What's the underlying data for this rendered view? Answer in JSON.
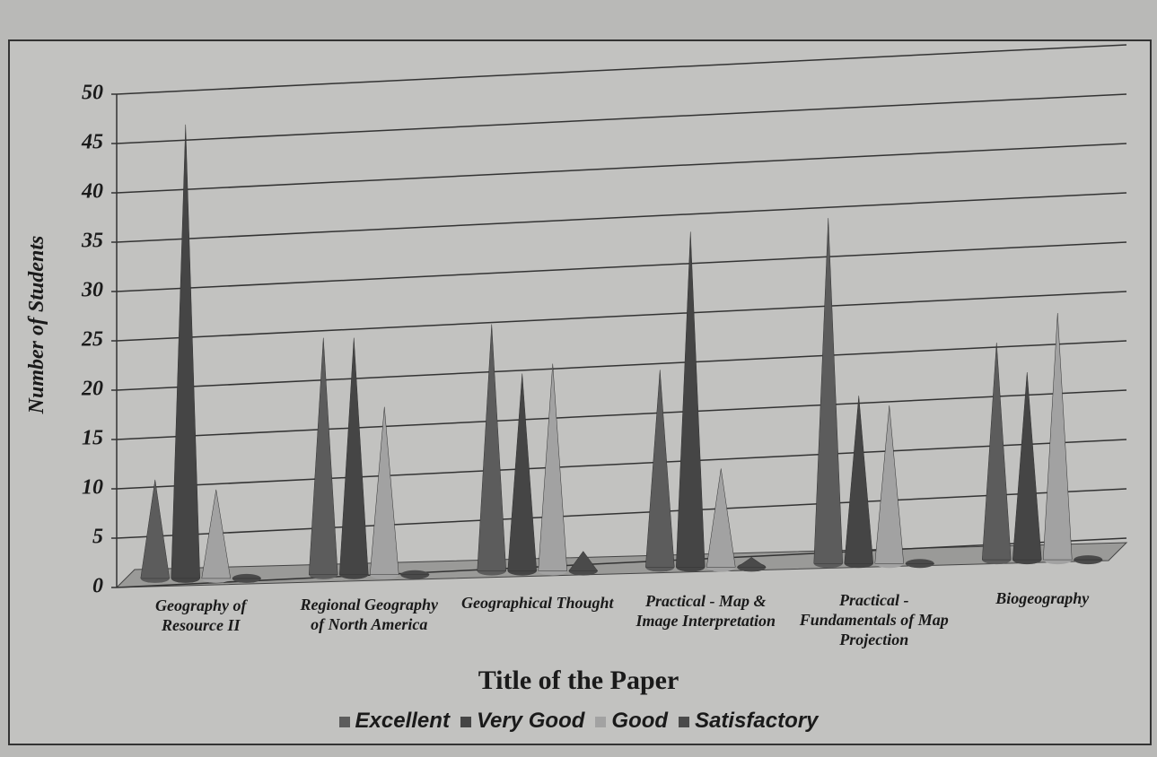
{
  "chart_data": {
    "type": "cone",
    "x_label": "Title of the Paper",
    "y_label": "Number of Students",
    "categories": [
      "Geography of Resource II",
      "Regional Geography of North America",
      "Geographical Thought",
      "Practical - Map & Image Interpretation",
      "Practical - Fundamentals of Map Projection",
      "Biogeography"
    ],
    "series": [
      {
        "name": "Excellent",
        "color": "#5c5c5c",
        "values": [
          10,
          24,
          25,
          20,
          35,
          22
        ]
      },
      {
        "name": "Very Good",
        "color": "#454545",
        "values": [
          46,
          24,
          20,
          34,
          17,
          19
        ]
      },
      {
        "name": "Good",
        "color": "#a2a2a2",
        "values": [
          9,
          17,
          21,
          10,
          16,
          25
        ]
      },
      {
        "name": "Satisfactory",
        "color": "#4a4a4a",
        "values": [
          0,
          0,
          2,
          1,
          0,
          0
        ]
      }
    ],
    "ylim": [
      0,
      50
    ],
    "yticks": [
      0,
      5,
      10,
      15,
      20,
      25,
      30,
      35,
      40,
      45,
      50
    ],
    "grid": true,
    "legend": "bottom"
  }
}
